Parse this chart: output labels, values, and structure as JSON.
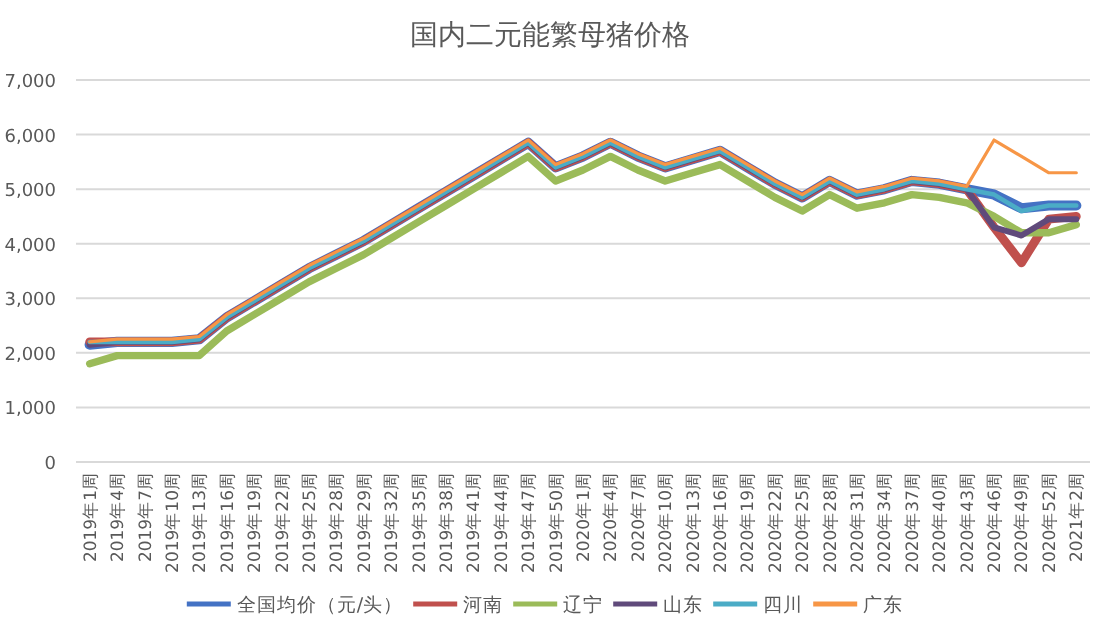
{
  "chart_data": {
    "type": "line",
    "title": "国内二元能繁母猪价格",
    "categories": [
      "2019年1周",
      "2019年4周",
      "2019年7周",
      "2019年10周",
      "2019年13周",
      "2019年16周",
      "2019年19周",
      "2019年22周",
      "2019年25周",
      "2019年28周",
      "2019年29周",
      "2019年32周",
      "2019年35周",
      "2019年38周",
      "2019年41周",
      "2019年44周",
      "2019年47周",
      "2019年50周",
      "2020年1周",
      "2020年4周",
      "2020年7周",
      "2020年10周",
      "2020年13周",
      "2020年16周",
      "2020年19周",
      "2020年22周",
      "2020年25周",
      "2020年28周",
      "2020年31周",
      "2020年34周",
      "2020年37周",
      "2020年40周",
      "2020年43周",
      "2020年46周",
      "2020年49周",
      "2020年52周",
      "2021年2周"
    ],
    "series": [
      {
        "name": "全国均价（元/头）",
        "color": "#4472c4",
        "values": [
          2150,
          2200,
          2200,
          2200,
          2250,
          2650,
          2950,
          3250,
          3550,
          3800,
          4050,
          4350,
          4650,
          4950,
          5250,
          5550,
          5850,
          5400,
          5600,
          5850,
          5600,
          5400,
          5550,
          5700,
          5400,
          5100,
          4850,
          5150,
          4900,
          5000,
          5150,
          5100,
          5000,
          4900,
          4650,
          4700,
          4700
        ]
      },
      {
        "name": "河南",
        "color": "#c0504d",
        "values": [
          2200,
          2200,
          2200,
          2200,
          2250,
          2650,
          2950,
          3250,
          3550,
          3800,
          4050,
          4350,
          4650,
          4950,
          5250,
          5550,
          5850,
          5400,
          5600,
          5850,
          5600,
          5400,
          5550,
          5700,
          5400,
          5100,
          4850,
          5150,
          4900,
          5000,
          5150,
          5100,
          5000,
          4300,
          3650,
          4450,
          4500
        ]
      },
      {
        "name": "辽宁",
        "color": "#9bbb59",
        "values": [
          1800,
          1950,
          1950,
          1950,
          1950,
          2400,
          2700,
          3000,
          3300,
          3550,
          3800,
          4100,
          4400,
          4700,
          5000,
          5300,
          5600,
          5150,
          5350,
          5600,
          5350,
          5150,
          5300,
          5450,
          5150,
          4850,
          4600,
          4900,
          4650,
          4750,
          4900,
          4850,
          4750,
          4500,
          4200,
          4200,
          4350
        ]
      },
      {
        "name": "山东",
        "color": "#604a7b",
        "values": [
          2150,
          2200,
          2200,
          2200,
          2250,
          2650,
          2950,
          3250,
          3550,
          3800,
          4050,
          4350,
          4650,
          4950,
          5250,
          5550,
          5850,
          5400,
          5600,
          5850,
          5600,
          5400,
          5550,
          5700,
          5400,
          5100,
          4850,
          5150,
          4900,
          5000,
          5150,
          5100,
          5000,
          4300,
          4150,
          4450,
          4450
        ]
      },
      {
        "name": "四川",
        "color": "#4bacc6",
        "values": [
          2200,
          2200,
          2200,
          2200,
          2250,
          2650,
          2950,
          3250,
          3550,
          3800,
          4050,
          4350,
          4650,
          4950,
          5250,
          5550,
          5850,
          5400,
          5600,
          5850,
          5600,
          5400,
          5550,
          5700,
          5400,
          5100,
          4850,
          5150,
          4900,
          5000,
          5150,
          5100,
          5000,
          4900,
          4600,
          4700,
          4700
        ]
      },
      {
        "name": "广东",
        "color": "#f79646",
        "values": [
          2200,
          2250,
          2250,
          2250,
          2300,
          2700,
          3000,
          3300,
          3600,
          3850,
          4100,
          4400,
          4700,
          5000,
          5300,
          5600,
          5900,
          5450,
          5650,
          5900,
          5650,
          5450,
          5600,
          5750,
          5450,
          5150,
          4900,
          5200,
          4950,
          5050,
          5200,
          5150,
          5050,
          5900,
          5600,
          5300,
          5300
        ]
      }
    ],
    "ylim": [
      0,
      7000
    ],
    "yticks": [
      {
        "value": 0,
        "label": "0"
      },
      {
        "value": 1000,
        "label": "1,000"
      },
      {
        "value": 2000,
        "label": "2,000"
      },
      {
        "value": 3000,
        "label": "3,000"
      },
      {
        "value": 4000,
        "label": "4,000"
      },
      {
        "value": 5000,
        "label": "5,000"
      },
      {
        "value": 6000,
        "label": "6,000"
      },
      {
        "value": 7000,
        "label": "7,000"
      }
    ],
    "grid": "y",
    "legend": "bottom",
    "marker": "none",
    "line_style": "solid"
  }
}
